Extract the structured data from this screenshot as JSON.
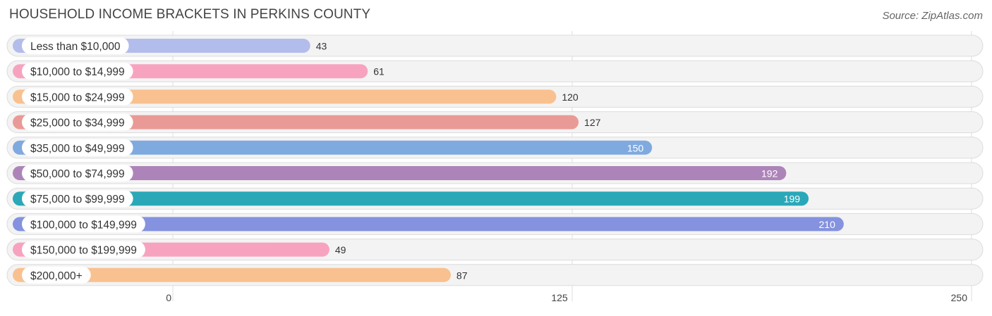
{
  "header": {
    "title": "HOUSEHOLD INCOME BRACKETS IN PERKINS COUNTY",
    "source": "Source: ZipAtlas.com"
  },
  "chart_data": {
    "type": "bar",
    "orientation": "horizontal",
    "title": "HOUSEHOLD INCOME BRACKETS IN PERKINS COUNTY",
    "xlim": [
      0,
      250
    ],
    "x_ticks": [
      0,
      125,
      250
    ],
    "grid": true,
    "categories": [
      "Less than $10,000",
      "$10,000 to $14,999",
      "$15,000 to $24,999",
      "$25,000 to $34,999",
      "$35,000 to $49,999",
      "$50,000 to $74,999",
      "$75,000 to $99,999",
      "$100,000 to $149,999",
      "$150,000 to $199,999",
      "$200,000+"
    ],
    "values": [
      43,
      61,
      120,
      127,
      150,
      192,
      199,
      210,
      49,
      87
    ],
    "colors": [
      "#b3bdeb",
      "#f7a3bf",
      "#f9c18f",
      "#ea9a96",
      "#7faadf",
      "#ad84b9",
      "#2aa8b8",
      "#8492df",
      "#f7a3bf",
      "#f9c18f"
    ]
  }
}
